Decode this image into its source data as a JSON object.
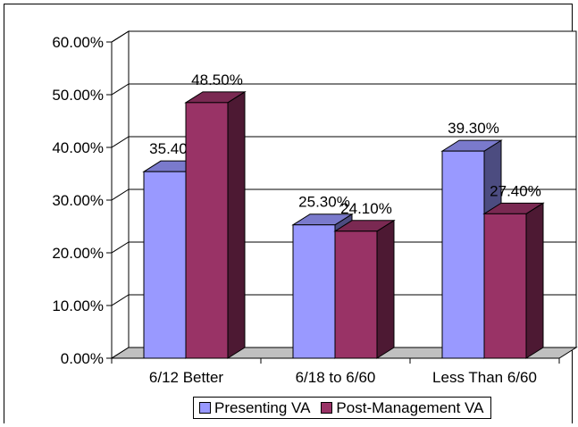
{
  "chart_data": {
    "type": "bar",
    "categories": [
      "6/12 Better",
      "6/18 to 6/60",
      "Less Than 6/60"
    ],
    "series": [
      {
        "name": "Presenting VA",
        "values": [
          35.4,
          25.3,
          39.3
        ],
        "labels": [
          "35.40%",
          "25.30%",
          "39.30%"
        ],
        "color": "#9999FF",
        "side_color": "#4C4C80",
        "top_color": "#7A7ACC"
      },
      {
        "name": "Post-Management VA",
        "values": [
          48.5,
          24.1,
          27.4
        ],
        "labels": [
          "48.50%",
          "24.10%",
          "27.40%"
        ],
        "color": "#993366",
        "side_color": "#4D1933",
        "top_color": "#7A2952"
      }
    ],
    "y_ticks": [
      "0.00%",
      "10.00%",
      "20.00%",
      "30.00%",
      "40.00%",
      "50.00%",
      "60.00%"
    ],
    "ylim": [
      0,
      60
    ],
    "grid": true,
    "legend_position": "bottom"
  }
}
